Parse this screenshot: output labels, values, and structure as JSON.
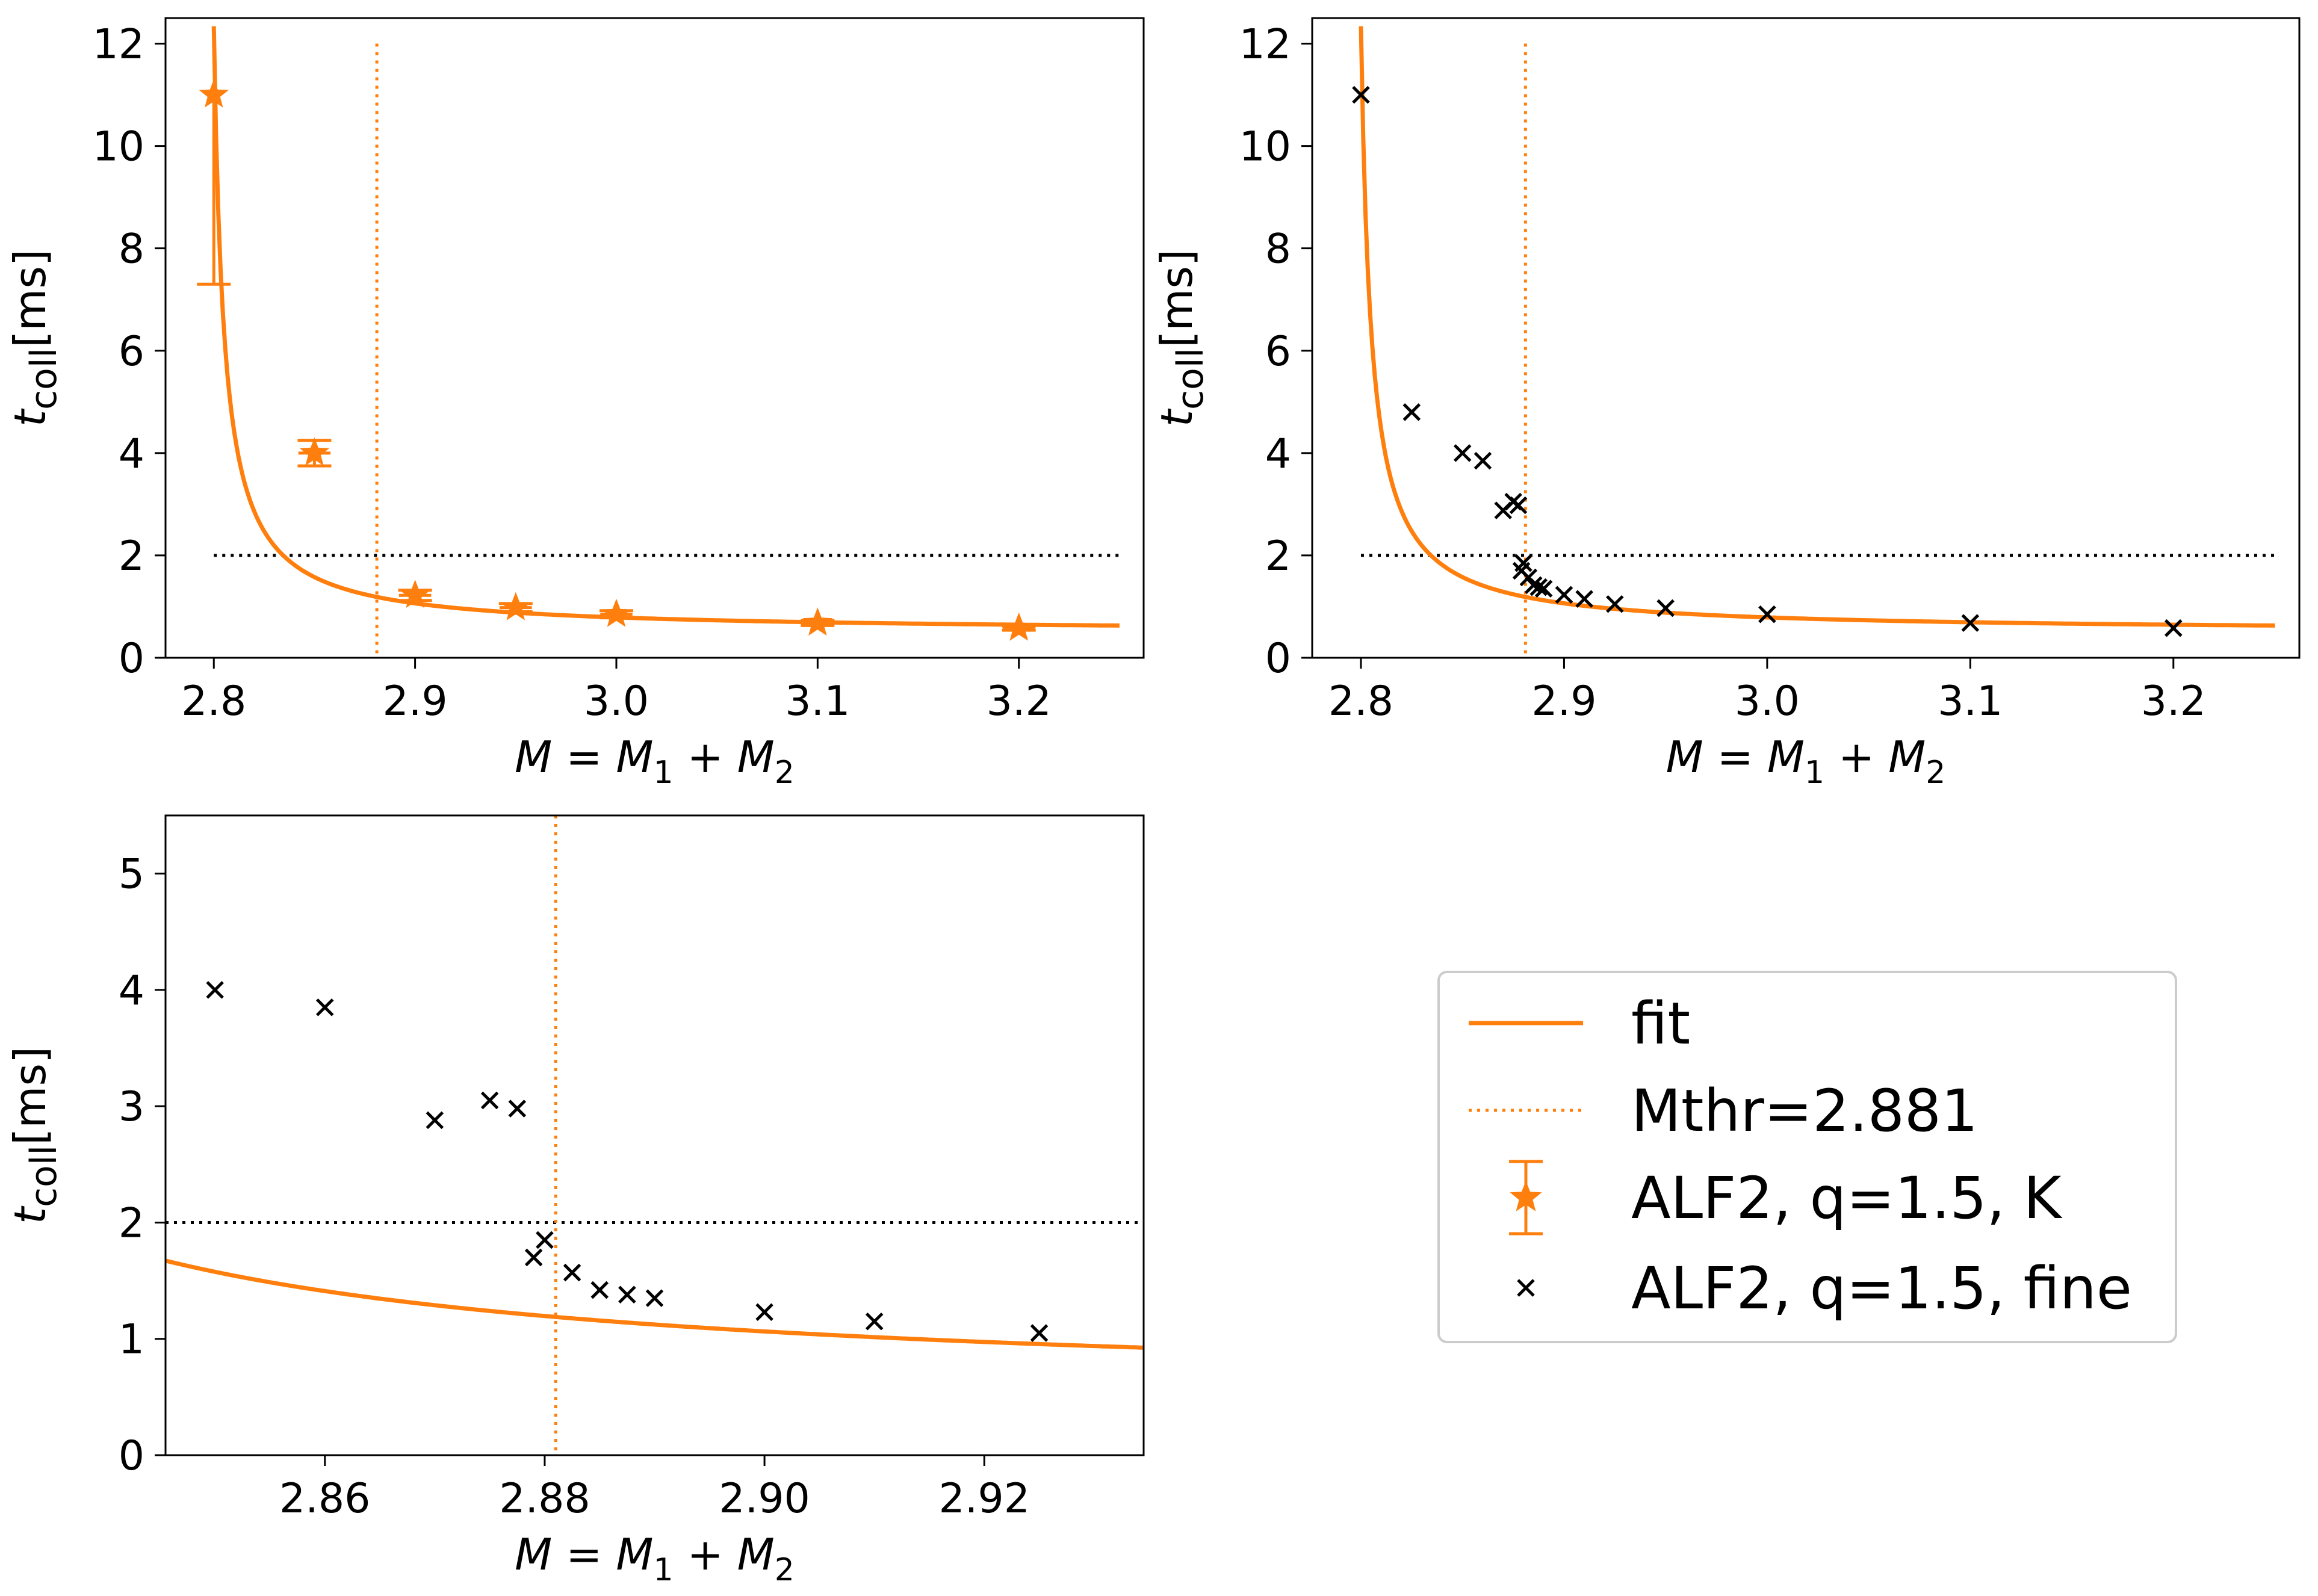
{
  "colors": {
    "fit": "#ff7f0e",
    "marker_k": "#ff7f0e",
    "marker_fine": "#000000",
    "threshold": "#000000"
  },
  "legend": {
    "entries": [
      {
        "key": "fit",
        "label": "fit"
      },
      {
        "key": "mthr",
        "label": "Mthr=2.881"
      },
      {
        "key": "k",
        "label": "ALF2, q=1.5, K"
      },
      {
        "key": "fine",
        "label": "ALF2, q=1.5, fine"
      }
    ]
  },
  "chart_data": [
    {
      "id": "top-left",
      "type": "scatter",
      "xlabel": "M = M1 + M2",
      "ylabel": "t_coll [ms]",
      "xlim": [
        2.776,
        3.262
      ],
      "ylim": [
        0,
        12.5
      ],
      "xticks": [
        2.8,
        2.9,
        3.0,
        3.1,
        3.2
      ],
      "xtick_labels": [
        "2.8",
        "2.9",
        "3.0",
        "3.1",
        "3.2"
      ],
      "yticks": [
        0,
        2,
        4,
        6,
        8,
        10,
        12
      ],
      "ytick_labels": [
        "0",
        "2",
        "4",
        "6",
        "8",
        "10",
        "12"
      ],
      "threshold_y": 2,
      "threshold_x_range": [
        2.8,
        3.25
      ],
      "mthr": 2.881,
      "mthr_y_top": 12,
      "fit": {
        "a": 0.5,
        "b": 0.0592,
        "m0": 2.795,
        "x_range": [
          2.8,
          3.25
        ]
      },
      "series": [
        {
          "name": "ALF2, q=1.5, K",
          "marker": "star",
          "x": [
            2.8,
            2.85,
            2.9,
            2.95,
            3.0,
            3.1,
            3.2
          ],
          "y": [
            11.0,
            4.0,
            1.22,
            0.98,
            0.85,
            0.68,
            0.58
          ],
          "yerr_low": [
            3.7,
            0.25,
            0.1,
            0.08,
            0.07,
            0.05,
            0.04
          ],
          "yerr_high": [
            0.0,
            0.25,
            0.1,
            0.08,
            0.07,
            0.05,
            0.04
          ],
          "xerr": [
            0.0,
            0.008,
            0.008,
            0.008,
            0.008,
            0.008,
            0.008
          ]
        }
      ]
    },
    {
      "id": "top-right",
      "type": "scatter",
      "xlabel": "M = M1 + M2",
      "ylabel": "t_coll [ms]",
      "xlim": [
        2.776,
        3.262
      ],
      "ylim": [
        0,
        12.5
      ],
      "xticks": [
        2.8,
        2.9,
        3.0,
        3.1,
        3.2
      ],
      "xtick_labels": [
        "2.8",
        "2.9",
        "3.0",
        "3.1",
        "3.2"
      ],
      "yticks": [
        0,
        2,
        4,
        6,
        8,
        10,
        12
      ],
      "ytick_labels": [
        "0",
        "2",
        "4",
        "6",
        "8",
        "10",
        "12"
      ],
      "threshold_y": 2,
      "threshold_x_range": [
        2.8,
        3.25
      ],
      "mthr": 2.881,
      "mthr_y_top": 12,
      "fit": {
        "a": 0.5,
        "b": 0.0592,
        "m0": 2.795,
        "x_range": [
          2.8,
          3.25
        ]
      },
      "series": [
        {
          "name": "ALF2, q=1.5, fine",
          "marker": "x",
          "x": [
            2.8,
            2.825,
            2.85,
            2.86,
            2.87,
            2.875,
            2.8775,
            2.879,
            2.88,
            2.8825,
            2.885,
            2.8875,
            2.89,
            2.9,
            2.91,
            2.925,
            2.95,
            3.0,
            3.1,
            3.2
          ],
          "y": [
            11.0,
            4.8,
            4.0,
            3.85,
            2.88,
            3.05,
            2.98,
            1.7,
            1.85,
            1.57,
            1.42,
            1.38,
            1.35,
            1.23,
            1.15,
            1.05,
            0.97,
            0.85,
            0.68,
            0.58
          ]
        }
      ]
    },
    {
      "id": "bottom-left",
      "type": "scatter",
      "xlabel": "M = M1 + M2",
      "ylabel": "t_coll [ms]",
      "xlim": [
        2.8455,
        2.9345
      ],
      "ylim": [
        0,
        5.5
      ],
      "xticks": [
        2.86,
        2.88,
        2.9,
        2.92
      ],
      "xtick_labels": [
        "2.86",
        "2.88",
        "2.90",
        "2.92"
      ],
      "yticks": [
        0,
        1,
        2,
        3,
        4,
        5
      ],
      "ytick_labels": [
        "0",
        "1",
        "2",
        "3",
        "4",
        "5"
      ],
      "threshold_y": 2,
      "threshold_x_range": [
        2.8455,
        2.9345
      ],
      "mthr": 2.881,
      "mthr_y_top": 5.5,
      "fit": {
        "a": 0.5,
        "b": 0.0592,
        "m0": 2.795,
        "x_range": [
          2.8455,
          2.9345
        ]
      },
      "series": [
        {
          "name": "ALF2, q=1.5, fine",
          "marker": "x",
          "x": [
            2.85,
            2.86,
            2.87,
            2.875,
            2.8775,
            2.879,
            2.88,
            2.8825,
            2.885,
            2.8875,
            2.89,
            2.9,
            2.91,
            2.925
          ],
          "y": [
            4.0,
            3.85,
            2.88,
            3.05,
            2.98,
            1.7,
            1.85,
            1.57,
            1.42,
            1.38,
            1.35,
            1.23,
            1.15,
            1.05
          ]
        }
      ]
    }
  ]
}
